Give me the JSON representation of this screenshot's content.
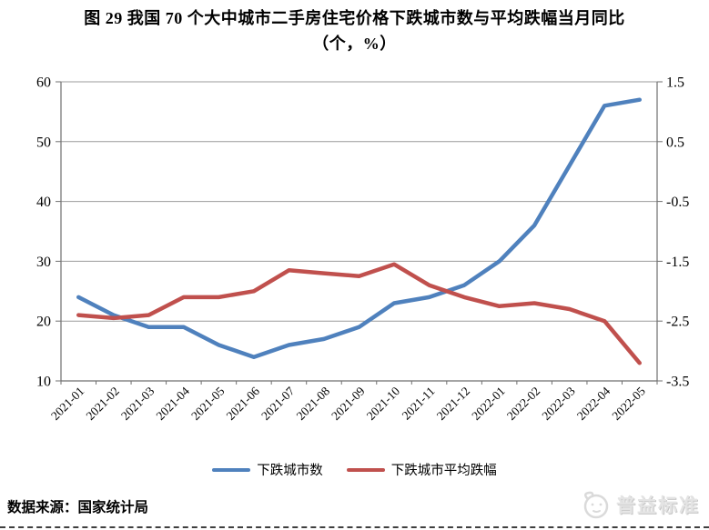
{
  "title": {
    "line1": "图 29 我国 70 个大中城市二手房住宅价格下跌城市数与平均跌幅当月同比",
    "line2": "（个，%）"
  },
  "source": "数据来源：国家统计局",
  "watermark": "普益标准",
  "colors": {
    "series_cities": "#4F81BD",
    "series_decline": "#C0504D",
    "grid": "#9b9b9b",
    "axis": "#6f6f6f"
  },
  "chart_data": {
    "type": "line",
    "title": "图 29 我国 70 个大中城市二手房住宅价格下跌城市数与平均跌幅当月同比（个，%）",
    "categories": [
      "2021-01",
      "2021-02",
      "2021-03",
      "2021-04",
      "2021-05",
      "2021-06",
      "2021-07",
      "2021-08",
      "2021-09",
      "2021-10",
      "2021-11",
      "2021-12",
      "2022-01",
      "2022-02",
      "2022-03",
      "2022-04",
      "2022-05"
    ],
    "series": [
      {
        "name": "下跌城市数",
        "axis": "left",
        "unit": "个",
        "color": "#4F81BD",
        "values": [
          24,
          21,
          19,
          19,
          16,
          14,
          16,
          17,
          19,
          23,
          24,
          26,
          30,
          36,
          46,
          56,
          57
        ]
      },
      {
        "name": "下跌城市平均跌幅",
        "axis": "right",
        "unit": "%",
        "color": "#C0504D",
        "values": [
          -2.4,
          -2.45,
          -2.4,
          -2.1,
          -2.1,
          -2.0,
          -1.65,
          -1.7,
          -1.75,
          -1.55,
          -1.9,
          -2.1,
          -2.25,
          -2.2,
          -2.3,
          -2.5,
          -3.2
        ]
      }
    ],
    "left_axis": {
      "min": 10,
      "max": 60,
      "ticks": [
        60,
        50,
        40,
        30,
        20,
        10
      ]
    },
    "right_axis": {
      "min": -3.5,
      "max": 1.5,
      "ticks": [
        1.5,
        0.5,
        -0.5,
        -1.5,
        -2.5,
        -3.5
      ]
    },
    "grid": true,
    "legend_position": "bottom",
    "x_label_rotation": -45
  }
}
